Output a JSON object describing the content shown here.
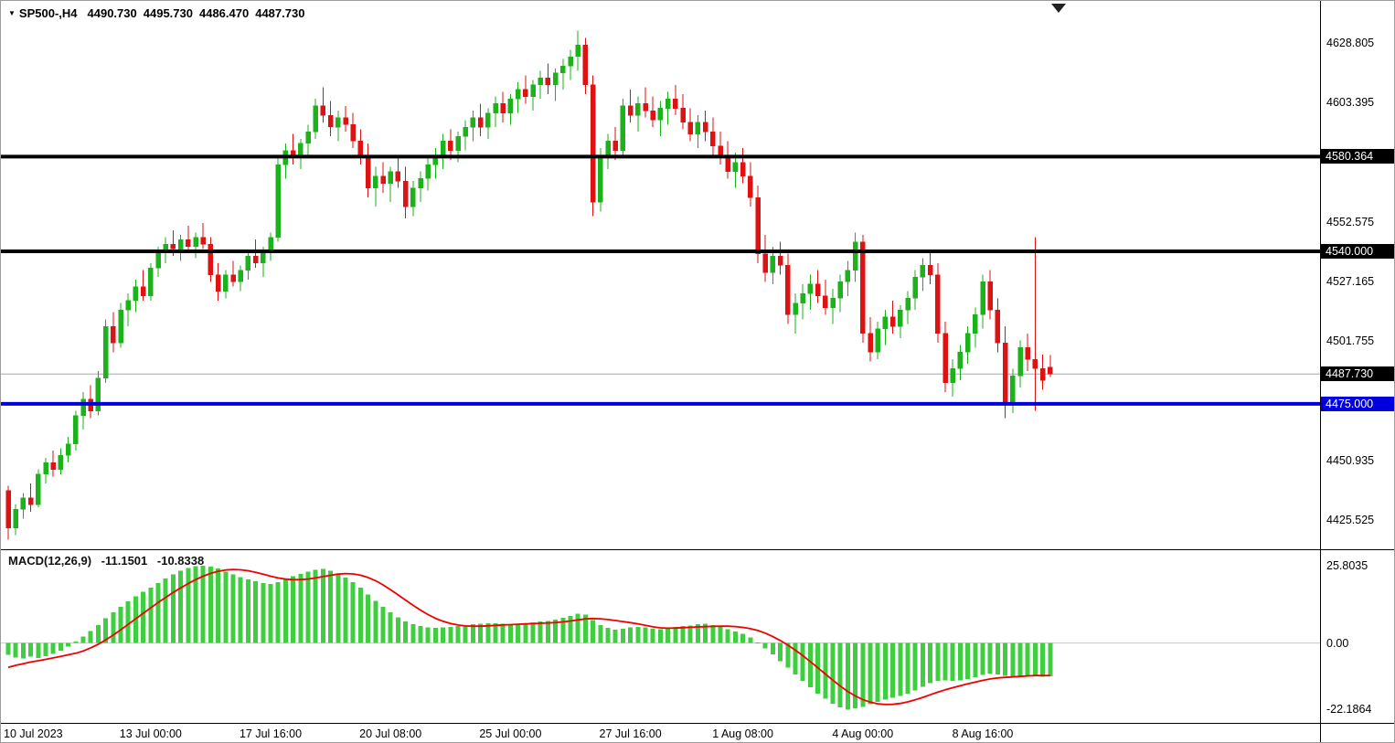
{
  "window": {
    "bg": "#FFFFFF",
    "border": "#9C9C9C"
  },
  "header": {
    "symbol": "SP500-,H4",
    "open": "4490.730",
    "high": "4495.730",
    "low": "4486.470",
    "close": "4487.730"
  },
  "indicator_label": {
    "name": "MACD(12,26,9)",
    "value_main": "-11.1501",
    "value_signal": "-10.8338"
  },
  "colors": {
    "bull": "#1CB21C",
    "bear": "#DE1212",
    "macd_hist": "#3FCE3F",
    "macd_signal": "#F00000",
    "level_black": "#000000",
    "level_blue": "#0000DE",
    "current_price_line": "#9AA8B5",
    "zero_line": "#C8C8C8",
    "separator": "#000000",
    "axis_text": "#000000"
  },
  "price_axis": {
    "side": "right",
    "ticks": [
      {
        "text": "4628.805",
        "value": 4628.805
      },
      {
        "text": "4603.395",
        "value": 4603.395
      },
      {
        "text": "4552.575",
        "value": 4552.575
      },
      {
        "text": "4527.165",
        "value": 4527.165
      },
      {
        "text": "4501.755",
        "value": 4501.755
      },
      {
        "text": "4450.935",
        "value": 4450.935
      },
      {
        "text": "4425.525",
        "value": 4425.525
      }
    ],
    "boxed_labels": [
      {
        "text": "4580.364",
        "value": 4580.364,
        "bg": "#000000"
      },
      {
        "text": "4540.000",
        "value": 4540.0,
        "bg": "#000000"
      },
      {
        "text": "4487.730",
        "value": 4487.73,
        "bg": "#000000"
      },
      {
        "text": "4475.000",
        "value": 4475.0,
        "bg": "#0000DE"
      }
    ]
  },
  "macd_axis": {
    "ticks": [
      {
        "text": "25.8035",
        "value": 25.8035
      },
      {
        "text": "0.00",
        "value": 0
      },
      {
        "text": "-22.1864",
        "value": -22.1864
      }
    ]
  },
  "time_axis": {
    "labels": [
      {
        "text": "10 Jul 2023",
        "bar": 0
      },
      {
        "text": "13 Jul 00:00",
        "bar": 19
      },
      {
        "text": "17 Jul 16:00",
        "bar": 35
      },
      {
        "text": "20 Jul 08:00",
        "bar": 51
      },
      {
        "text": "25 Jul 00:00",
        "bar": 67
      },
      {
        "text": "27 Jul 16:00",
        "bar": 83
      },
      {
        "text": "1 Aug 08:00",
        "bar": 98
      },
      {
        "text": "4 Aug 00:00",
        "bar": 114
      },
      {
        "text": "8 Aug 16:00",
        "bar": 130
      }
    ]
  },
  "chart_data": [
    {
      "type": "candlestick",
      "title": "SP500-,H4",
      "timeframe": "H4",
      "ylim": [
        4413.0,
        4637.4
      ],
      "current_bar": {
        "open": 4490.73,
        "high": 4495.73,
        "low": 4486.47,
        "close": 4487.73
      },
      "levels": [
        {
          "name": "level-line-4580",
          "value": 4580.364,
          "color": "#000000",
          "width": 4,
          "under": false
        },
        {
          "name": "level-line-4540",
          "value": 4540.0,
          "color": "#000000",
          "width": 4,
          "under": false
        },
        {
          "name": "current-price-line",
          "value": 4487.73,
          "color": "#9AA8B5",
          "width": 1,
          "under": true
        },
        {
          "name": "level-line-4475",
          "value": 4475.0,
          "color": "#0000DE",
          "width": 4,
          "under": false
        }
      ],
      "ohlc": [
        [
          4438,
          4440,
          4417,
          4422
        ],
        [
          4422,
          4432,
          4419,
          4430
        ],
        [
          4430,
          4437,
          4426,
          4435
        ],
        [
          4435,
          4441,
          4429,
          4432
        ],
        [
          4432,
          4447,
          4431,
          4445
        ],
        [
          4445,
          4452,
          4441,
          4450
        ],
        [
          4450,
          4455,
          4444,
          4447
        ],
        [
          4447,
          4456,
          4445,
          4453
        ],
        [
          4453,
          4461,
          4450,
          4458
        ],
        [
          4458,
          4472,
          4455,
          4470
        ],
        [
          4470,
          4480,
          4464,
          4477
        ],
        [
          4477,
          4483,
          4469,
          4472
        ],
        [
          4472,
          4489,
          4470,
          4486
        ],
        [
          4486,
          4511,
          4484,
          4508
        ],
        [
          4508,
          4514,
          4497,
          4501
        ],
        [
          4501,
          4518,
          4499,
          4515
        ],
        [
          4515,
          4522,
          4508,
          4519
        ],
        [
          4519,
          4528,
          4514,
          4525
        ],
        [
          4525,
          4532,
          4519,
          4521
        ],
        [
          4521,
          4535,
          4519,
          4533
        ],
        [
          4533,
          4542,
          4529,
          4540
        ],
        [
          4540,
          4546,
          4535,
          4543
        ],
        [
          4543,
          4549,
          4538,
          4541
        ],
        [
          4541,
          4547,
          4536,
          4545
        ],
        [
          4545,
          4551,
          4540,
          4542
        ],
        [
          4542,
          4548,
          4537,
          4546
        ],
        [
          4546,
          4552,
          4541,
          4543
        ],
        [
          4543,
          4546,
          4527,
          4530
        ],
        [
          4530,
          4535,
          4519,
          4523
        ],
        [
          4523,
          4532,
          4520,
          4530
        ],
        [
          4530,
          4536,
          4525,
          4527
        ],
        [
          4527,
          4534,
          4523,
          4532
        ],
        [
          4532,
          4540,
          4528,
          4538
        ],
        [
          4538,
          4545,
          4533,
          4535
        ],
        [
          4535,
          4542,
          4529,
          4540
        ],
        [
          4540,
          4548,
          4536,
          4546
        ],
        [
          4546,
          4580,
          4544,
          4577
        ],
        [
          4577,
          4586,
          4571,
          4583
        ],
        [
          4583,
          4590,
          4577,
          4580
        ],
        [
          4580,
          4588,
          4575,
          4586
        ],
        [
          4586,
          4594,
          4581,
          4591
        ],
        [
          4591,
          4605,
          4588,
          4602
        ],
        [
          4602,
          4610,
          4595,
          4598
        ],
        [
          4598,
          4604,
          4589,
          4593
        ],
        [
          4593,
          4600,
          4587,
          4597
        ],
        [
          4597,
          4602,
          4591,
          4594
        ],
        [
          4594,
          4599,
          4584,
          4587
        ],
        [
          4587,
          4592,
          4577,
          4581
        ],
        [
          4581,
          4586,
          4563,
          4567
        ],
        [
          4567,
          4576,
          4559,
          4572
        ],
        [
          4572,
          4578,
          4565,
          4569
        ],
        [
          4569,
          4576,
          4561,
          4574
        ],
        [
          4574,
          4580,
          4567,
          4570
        ],
        [
          4570,
          4576,
          4554,
          4559
        ],
        [
          4559,
          4570,
          4555,
          4567
        ],
        [
          4567,
          4574,
          4561,
          4571
        ],
        [
          4571,
          4580,
          4566,
          4577
        ],
        [
          4577,
          4584,
          4571,
          4581
        ],
        [
          4581,
          4590,
          4575,
          4587
        ],
        [
          4587,
          4592,
          4579,
          4583
        ],
        [
          4583,
          4591,
          4578,
          4589
        ],
        [
          4589,
          4596,
          4583,
          4593
        ],
        [
          4593,
          4600,
          4587,
          4597
        ],
        [
          4597,
          4603,
          4589,
          4593
        ],
        [
          4593,
          4601,
          4588,
          4599
        ],
        [
          4599,
          4606,
          4593,
          4603
        ],
        [
          4603,
          4608,
          4595,
          4599
        ],
        [
          4599,
          4607,
          4594,
          4605
        ],
        [
          4605,
          4612,
          4599,
          4609
        ],
        [
          4609,
          4615,
          4603,
          4606
        ],
        [
          4606,
          4613,
          4600,
          4611
        ],
        [
          4611,
          4617,
          4605,
          4614
        ],
        [
          4614,
          4620,
          4607,
          4611
        ],
        [
          4611,
          4618,
          4604,
          4616
        ],
        [
          4616,
          4622,
          4609,
          4619
        ],
        [
          4619,
          4626,
          4613,
          4623
        ],
        [
          4623,
          4634,
          4617,
          4628
        ],
        [
          4628,
          4631,
          4607,
          4611
        ],
        [
          4611,
          4615,
          4555,
          4561
        ],
        [
          4561,
          4584,
          4557,
          4581
        ],
        [
          4581,
          4590,
          4575,
          4587
        ],
        [
          4587,
          4593,
          4579,
          4583
        ],
        [
          4583,
          4605,
          4581,
          4602
        ],
        [
          4602,
          4609,
          4595,
          4598
        ],
        [
          4598,
          4606,
          4591,
          4603
        ],
        [
          4603,
          4610,
          4597,
          4600
        ],
        [
          4600,
          4606,
          4593,
          4596
        ],
        [
          4596,
          4604,
          4589,
          4601
        ],
        [
          4601,
          4608,
          4594,
          4605
        ],
        [
          4605,
          4611,
          4598,
          4601
        ],
        [
          4601,
          4607,
          4592,
          4595
        ],
        [
          4595,
          4601,
          4587,
          4590
        ],
        [
          4590,
          4598,
          4584,
          4595
        ],
        [
          4595,
          4600,
          4587,
          4591
        ],
        [
          4591,
          4597,
          4581,
          4585
        ],
        [
          4585,
          4591,
          4577,
          4580
        ],
        [
          4580,
          4587,
          4571,
          4574
        ],
        [
          4574,
          4582,
          4567,
          4578
        ],
        [
          4578,
          4584,
          4569,
          4572
        ],
        [
          4572,
          4578,
          4559,
          4563
        ],
        [
          4563,
          4568,
          4535,
          4539
        ],
        [
          4539,
          4547,
          4527,
          4531
        ],
        [
          4531,
          4542,
          4526,
          4538
        ],
        [
          4538,
          4544,
          4530,
          4534
        ],
        [
          4534,
          4539,
          4509,
          4513
        ],
        [
          4513,
          4522,
          4505,
          4518
        ],
        [
          4518,
          4526,
          4511,
          4522
        ],
        [
          4522,
          4530,
          4515,
          4526
        ],
        [
          4526,
          4532,
          4518,
          4521
        ],
        [
          4521,
          4528,
          4513,
          4516
        ],
        [
          4516,
          4524,
          4509,
          4520
        ],
        [
          4520,
          4530,
          4514,
          4527
        ],
        [
          4527,
          4536,
          4521,
          4532
        ],
        [
          4532,
          4548,
          4527,
          4544
        ],
        [
          4544,
          4547,
          4501,
          4505
        ],
        [
          4505,
          4512,
          4493,
          4497
        ],
        [
          4497,
          4510,
          4494,
          4507
        ],
        [
          4507,
          4515,
          4500,
          4512
        ],
        [
          4512,
          4519,
          4505,
          4508
        ],
        [
          4508,
          4517,
          4503,
          4515
        ],
        [
          4515,
          4523,
          4509,
          4520
        ],
        [
          4520,
          4532,
          4515,
          4529
        ],
        [
          4529,
          4537,
          4523,
          4534
        ],
        [
          4534,
          4540,
          4526,
          4530
        ],
        [
          4530,
          4535,
          4501,
          4505
        ],
        [
          4505,
          4510,
          4480,
          4484
        ],
        [
          4484,
          4494,
          4478,
          4490
        ],
        [
          4490,
          4500,
          4485,
          4497
        ],
        [
          4497,
          4508,
          4492,
          4505
        ],
        [
          4505,
          4516,
          4499,
          4513
        ],
        [
          4513,
          4530,
          4507,
          4527
        ],
        [
          4527,
          4532,
          4511,
          4515
        ],
        [
          4515,
          4520,
          4497,
          4501
        ],
        [
          4501,
          4508,
          4469,
          4475
        ],
        [
          4475,
          4490,
          4471,
          4487
        ],
        [
          4487,
          4502,
          4482,
          4499
        ],
        [
          4499,
          4505,
          4489,
          4494
        ],
        [
          4494,
          4546,
          4472,
          4490
        ],
        [
          4490,
          4496,
          4481,
          4485
        ],
        [
          4490.73,
          4495.73,
          4486.47,
          4487.73
        ]
      ]
    },
    {
      "type": "bar",
      "name": "MACD(12,26,9)",
      "ylim": [
        -26,
        30
      ],
      "values_main": -11.1501,
      "values_signal": -10.8338,
      "signal_sma_period": 9,
      "signal_seed_history": [
        -11,
        -10,
        -9.5,
        -9,
        -8.5,
        -8,
        -7,
        -6
      ],
      "hist": [
        -4.0,
        -4.8,
        -5.2,
        -4.6,
        -5.0,
        -4.4,
        -3.6,
        -2.5,
        -1.2,
        0.5,
        2.2,
        4.0,
        6.0,
        8.2,
        10.2,
        12.0,
        13.8,
        15.5,
        17.0,
        18.5,
        20.0,
        21.5,
        22.8,
        24.0,
        25.0,
        25.6,
        25.8,
        25.5,
        24.8,
        23.8,
        22.8,
        22.0,
        21.2,
        20.5,
        20.0,
        19.6,
        20.2,
        21.2,
        22.2,
        23.0,
        23.8,
        24.4,
        24.6,
        24.0,
        23.0,
        21.8,
        20.2,
        18.4,
        16.2,
        14.0,
        12.0,
        10.2,
        8.6,
        7.2,
        6.2,
        5.6,
        5.2,
        5.0,
        5.2,
        5.4,
        5.6,
        5.8,
        6.2,
        6.4,
        6.5,
        6.6,
        6.4,
        6.2,
        6.4,
        6.6,
        6.8,
        7.2,
        7.4,
        7.8,
        8.4,
        9.0,
        9.7,
        9.4,
        7.6,
        6.0,
        5.0,
        4.4,
        4.8,
        5.2,
        5.4,
        5.2,
        4.8,
        4.6,
        5.0,
        5.4,
        5.6,
        5.8,
        6.2,
        6.4,
        6.0,
        5.4,
        4.6,
        3.8,
        3.0,
        1.8,
        0.2,
        -1.8,
        -3.8,
        -6.0,
        -8.2,
        -10.4,
        -12.6,
        -14.8,
        -16.8,
        -18.6,
        -20.2,
        -21.4,
        -22.2,
        -21.8,
        -21.2,
        -20.4,
        -19.6,
        -18.8,
        -18.2,
        -17.6,
        -16.8,
        -15.8,
        -14.6,
        -13.4,
        -12.6,
        -12.4,
        -12.6,
        -12.4,
        -12.0,
        -11.4,
        -10.6,
        -10.2,
        -10.4,
        -11.0,
        -11.2,
        -11.0,
        -10.8,
        -11.0,
        -11.2,
        -11.1501
      ]
    }
  ]
}
